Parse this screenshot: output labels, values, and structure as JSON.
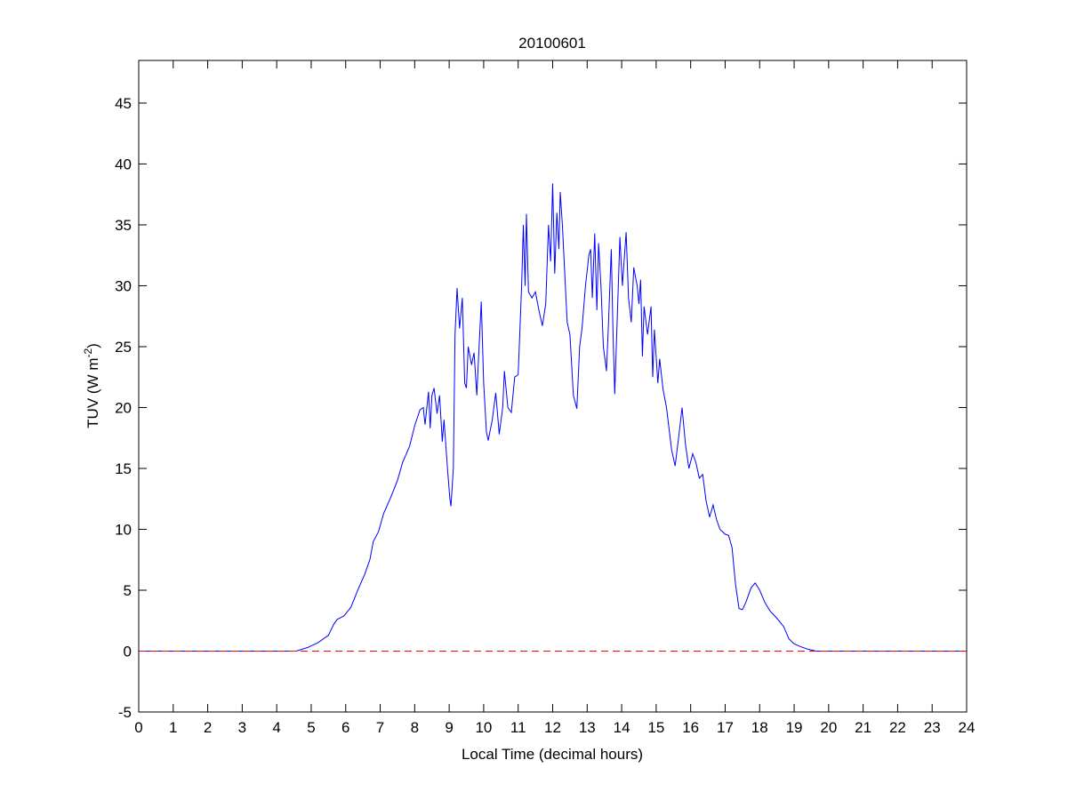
{
  "chart_data": {
    "type": "line",
    "title": "20100601",
    "xlabel": "Local Time (decimal hours)",
    "ylabel": {
      "main": "TUV (W m",
      "sup": "-2",
      "end": ")"
    },
    "xlim": [
      0,
      24
    ],
    "ylim": [
      -5,
      48.5
    ],
    "xticks": [
      0,
      1,
      2,
      3,
      4,
      5,
      6,
      7,
      8,
      9,
      10,
      11,
      12,
      13,
      14,
      15,
      16,
      17,
      18,
      19,
      20,
      21,
      22,
      23,
      24
    ],
    "yticks": [
      -5,
      0,
      5,
      10,
      15,
      20,
      25,
      30,
      35,
      40,
      45
    ],
    "grid": false,
    "colors": {
      "series": "#0000ff",
      "zero_line": "#ff0000"
    },
    "series": [
      {
        "name": "TUV",
        "points": [
          [
            0,
            0
          ],
          [
            4.56,
            0
          ],
          [
            4.9,
            0.3
          ],
          [
            5.2,
            0.7
          ],
          [
            5.5,
            1.3
          ],
          [
            5.65,
            2.2
          ],
          [
            5.75,
            2.6
          ],
          [
            5.95,
            2.9
          ],
          [
            6.15,
            3.6
          ],
          [
            6.35,
            5
          ],
          [
            6.55,
            6.3
          ],
          [
            6.7,
            7.5
          ],
          [
            6.8,
            9
          ],
          [
            6.95,
            9.8
          ],
          [
            7.1,
            11.3
          ],
          [
            7.3,
            12.6
          ],
          [
            7.5,
            14
          ],
          [
            7.65,
            15.5
          ],
          [
            7.85,
            16.8
          ],
          [
            8.0,
            18.5
          ],
          [
            8.15,
            19.8
          ],
          [
            8.25,
            20
          ],
          [
            8.3,
            18.6
          ],
          [
            8.4,
            21.3
          ],
          [
            8.45,
            18.3
          ],
          [
            8.5,
            21
          ],
          [
            8.56,
            21.6
          ],
          [
            8.65,
            19.5
          ],
          [
            8.72,
            21
          ],
          [
            8.8,
            17.2
          ],
          [
            8.85,
            19
          ],
          [
            8.95,
            15
          ],
          [
            9.02,
            12.5
          ],
          [
            9.05,
            11.9
          ],
          [
            9.12,
            15
          ],
          [
            9.17,
            26
          ],
          [
            9.23,
            29.8
          ],
          [
            9.3,
            26.5
          ],
          [
            9.38,
            29
          ],
          [
            9.45,
            22
          ],
          [
            9.5,
            21.6
          ],
          [
            9.55,
            25
          ],
          [
            9.65,
            23.5
          ],
          [
            9.72,
            24.5
          ],
          [
            9.8,
            21
          ],
          [
            9.85,
            24
          ],
          [
            9.93,
            28.7
          ],
          [
            10.0,
            22
          ],
          [
            10.08,
            18
          ],
          [
            10.13,
            17.3
          ],
          [
            10.25,
            19
          ],
          [
            10.35,
            21.2
          ],
          [
            10.45,
            17.8
          ],
          [
            10.55,
            20
          ],
          [
            10.6,
            23
          ],
          [
            10.7,
            20
          ],
          [
            10.8,
            19.6
          ],
          [
            10.9,
            22.5
          ],
          [
            11.0,
            22.7
          ],
          [
            11.1,
            30
          ],
          [
            11.15,
            35
          ],
          [
            11.2,
            30
          ],
          [
            11.24,
            35.9
          ],
          [
            11.3,
            29.5
          ],
          [
            11.4,
            29
          ],
          [
            11.5,
            29.5
          ],
          [
            11.6,
            28
          ],
          [
            11.7,
            26.7
          ],
          [
            11.8,
            28.5
          ],
          [
            11.88,
            35
          ],
          [
            11.94,
            32
          ],
          [
            12.0,
            38.4
          ],
          [
            12.06,
            31
          ],
          [
            12.12,
            36
          ],
          [
            12.18,
            33
          ],
          [
            12.22,
            37.7
          ],
          [
            12.28,
            35
          ],
          [
            12.35,
            31
          ],
          [
            12.42,
            27
          ],
          [
            12.5,
            26
          ],
          [
            12.6,
            21
          ],
          [
            12.7,
            19.9
          ],
          [
            12.78,
            25
          ],
          [
            12.85,
            26.5
          ],
          [
            12.95,
            30
          ],
          [
            13.05,
            32.5
          ],
          [
            13.1,
            33
          ],
          [
            13.15,
            29
          ],
          [
            13.22,
            34.3
          ],
          [
            13.28,
            28
          ],
          [
            13.33,
            33.5
          ],
          [
            13.4,
            30
          ],
          [
            13.47,
            25
          ],
          [
            13.56,
            23
          ],
          [
            13.62,
            27
          ],
          [
            13.7,
            33
          ],
          [
            13.75,
            26
          ],
          [
            13.8,
            21.1
          ],
          [
            13.88,
            28
          ],
          [
            13.95,
            34
          ],
          [
            14.02,
            30
          ],
          [
            14.13,
            34.4
          ],
          [
            14.2,
            29
          ],
          [
            14.28,
            27
          ],
          [
            14.35,
            31.5
          ],
          [
            14.45,
            30
          ],
          [
            14.5,
            28.5
          ],
          [
            14.55,
            30.5
          ],
          [
            14.6,
            24.2
          ],
          [
            14.65,
            28.3
          ],
          [
            14.75,
            26
          ],
          [
            14.85,
            28.3
          ],
          [
            14.9,
            22.5
          ],
          [
            14.95,
            26.4
          ],
          [
            15.05,
            22
          ],
          [
            15.1,
            24
          ],
          [
            15.2,
            21.5
          ],
          [
            15.3,
            20
          ],
          [
            15.45,
            16.5
          ],
          [
            15.55,
            15.2
          ],
          [
            15.65,
            17.5
          ],
          [
            15.75,
            20
          ],
          [
            15.85,
            17
          ],
          [
            15.95,
            15
          ],
          [
            16.06,
            16.2
          ],
          [
            16.15,
            15.5
          ],
          [
            16.25,
            14.2
          ],
          [
            16.35,
            14.5
          ],
          [
            16.45,
            12.3
          ],
          [
            16.55,
            11
          ],
          [
            16.65,
            12
          ],
          [
            16.75,
            10.8
          ],
          [
            16.85,
            10
          ],
          [
            17.0,
            9.6
          ],
          [
            17.1,
            9.5
          ],
          [
            17.2,
            8.5
          ],
          [
            17.3,
            5.5
          ],
          [
            17.4,
            3.5
          ],
          [
            17.5,
            3.4
          ],
          [
            17.6,
            4
          ],
          [
            17.75,
            5.2
          ],
          [
            17.87,
            5.6
          ],
          [
            18.0,
            5
          ],
          [
            18.15,
            4
          ],
          [
            18.3,
            3.3
          ],
          [
            18.5,
            2.7
          ],
          [
            18.7,
            2
          ],
          [
            18.85,
            1
          ],
          [
            19.0,
            0.6
          ],
          [
            19.2,
            0.35
          ],
          [
            19.4,
            0.15
          ],
          [
            19.64,
            0
          ],
          [
            24,
            0
          ]
        ]
      },
      {
        "name": "zero-line",
        "style": "dashed",
        "points": [
          [
            0,
            0
          ],
          [
            24,
            0
          ]
        ]
      }
    ]
  }
}
